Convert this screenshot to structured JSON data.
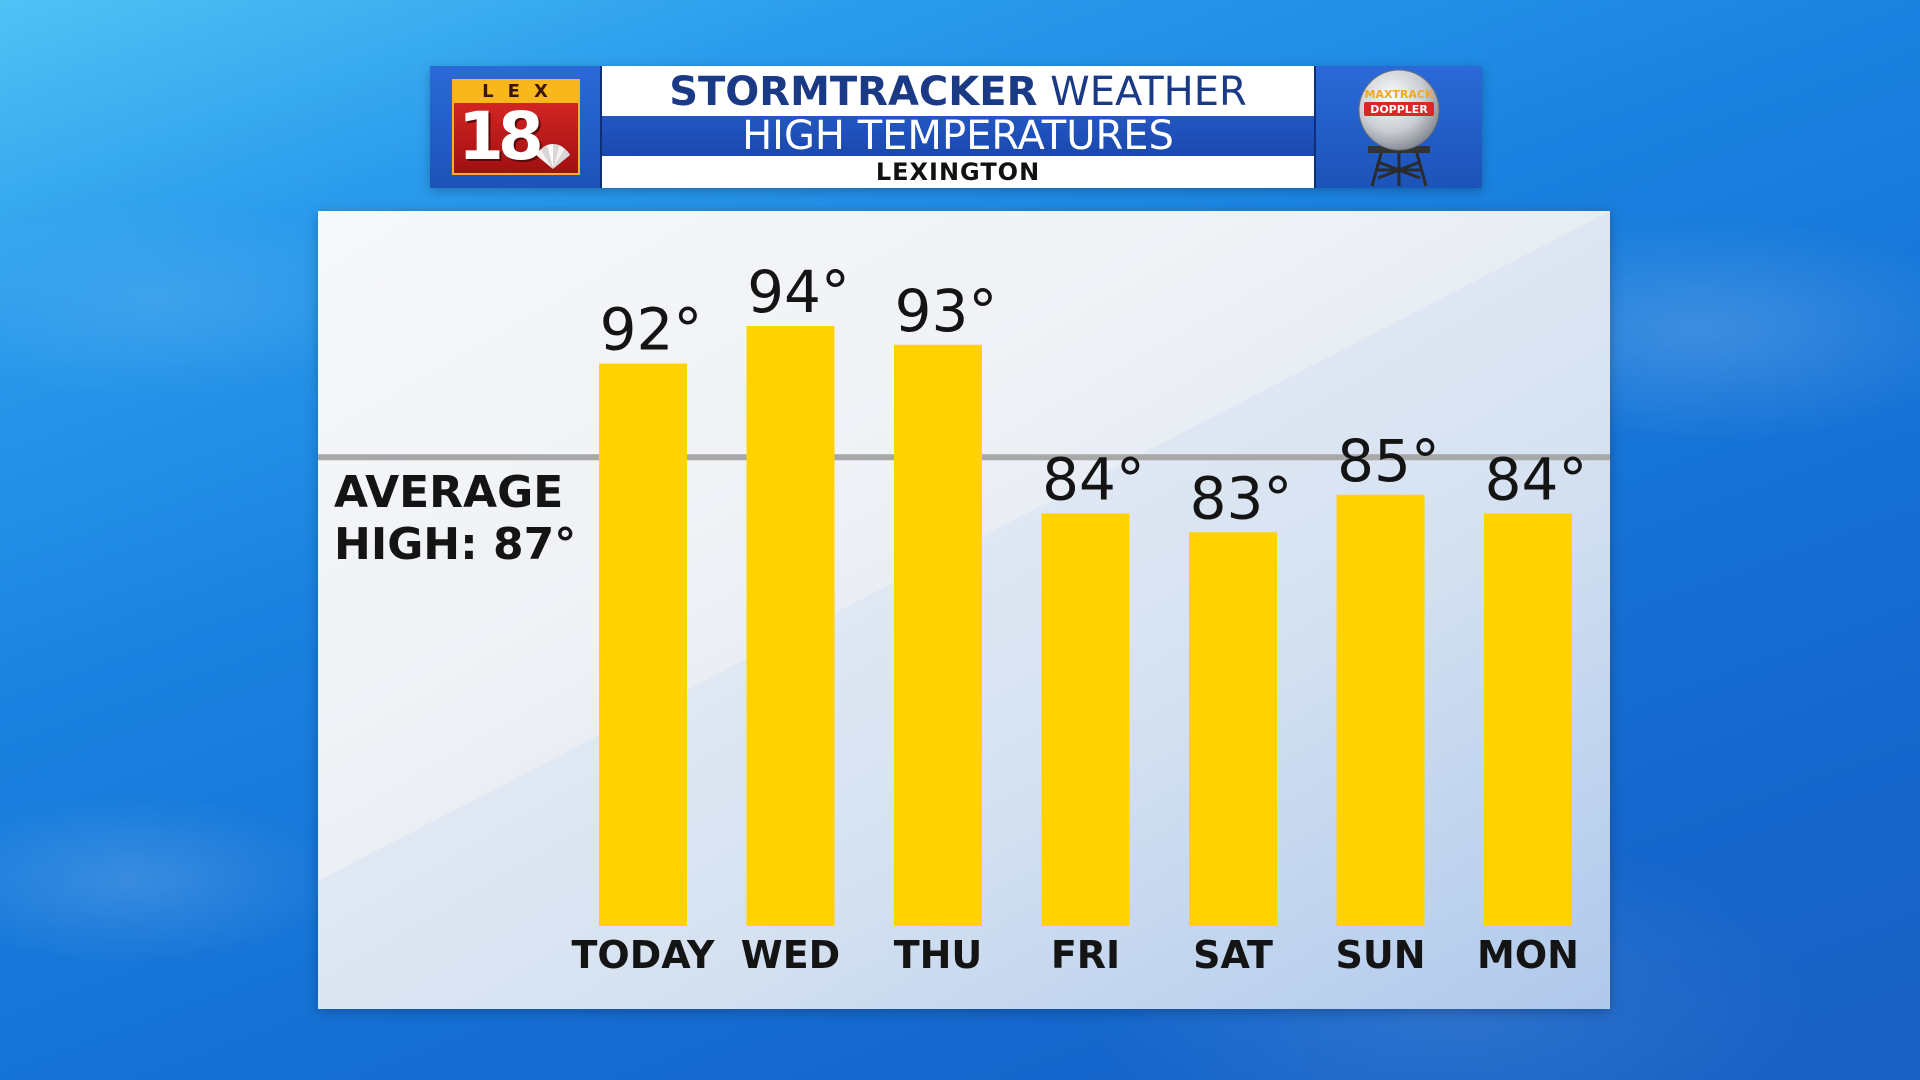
{
  "header": {
    "logo_lex": "LEX",
    "logo_number": "18",
    "title_bold": "STORMTRACKER",
    "title_regular": "WEATHER",
    "subtitle": "HIGH TEMPERATURES",
    "location": "LEXINGTON",
    "doppler_text_top": "MAXTRACK",
    "doppler_text_bottom": "DOPPLER"
  },
  "average": {
    "line1": "AVERAGE",
    "line2": "HIGH: 87°",
    "value": 87
  },
  "chart_data": {
    "type": "bar",
    "title": "HIGH TEMPERATURES",
    "categories": [
      "TODAY",
      "WED",
      "THU",
      "FRI",
      "SAT",
      "SUN",
      "MON"
    ],
    "values": [
      92,
      94,
      93,
      84,
      83,
      85,
      84
    ],
    "value_labels": [
      "92°",
      "94°",
      "93°",
      "84°",
      "83°",
      "85°",
      "84°"
    ],
    "reference_line": 87,
    "ylim": [
      62,
      98
    ],
    "grid": false,
    "bar_color": "#ffd200",
    "reference_line_color": "#a8a8a8"
  },
  "colors": {
    "background": "#1a82e0",
    "header_band": "#1f4fb8",
    "header_title": "#1a3a86",
    "text": "#141414"
  }
}
